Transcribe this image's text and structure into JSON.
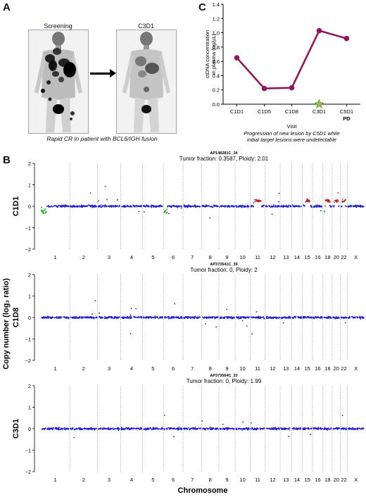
{
  "panels": {
    "a": {
      "letter": "A",
      "left_label": "Screening",
      "right_label": "C3D1",
      "caption": "Rapid CR in patient with BCL6/IGH fusion"
    },
    "b": {
      "letter": "B"
    },
    "c": {
      "letter": "C"
    }
  },
  "chart_data": [
    {
      "type": "line",
      "panel": "C",
      "categories": [
        "C1D1",
        "C1D5",
        "C1D8",
        "C3D1",
        "C5D1"
      ],
      "values": [
        0.65,
        0.22,
        0.23,
        1.03,
        0.92
      ],
      "ylabel_line1": "ctDNA concentration",
      "ylabel_line2": "in plasma (ng/µL)",
      "xlabel": "Visit",
      "ylim": [
        0,
        1.4
      ],
      "yticks": [
        "0.0",
        "0.2",
        "0.4",
        "0.6",
        "0.8",
        "1.0",
        "1.2",
        "1.4"
      ],
      "pd_label": "PD",
      "pd_category": "C5D1",
      "star_category": "C3D1",
      "caption_line1": "Progression of new lesion by C5D1 while",
      "caption_line2": "initial target lesions were undetectable",
      "line_color": "#8b1a5c",
      "star_color": "#8cc63f",
      "grid": false
    },
    {
      "type": "scatter",
      "panel": "B",
      "ylabel": "Copy number (log₂ ratio)",
      "xlabel": "Chromosome",
      "chromosomes": [
        "1",
        "2",
        "3",
        "4",
        "5",
        "6",
        "7",
        "8",
        "9",
        "10",
        "11",
        "12",
        "13",
        "14",
        "15",
        "16",
        "18",
        "20",
        "22",
        "X"
      ],
      "ylim": [
        -2,
        2
      ],
      "yticks": [
        "2",
        "1",
        "0",
        "−1",
        "−2"
      ],
      "point_color": "#2222cc",
      "gain_color": "#b22222",
      "loss_color": "#22aa22",
      "samples": [
        {
          "id": "AP148281C_34",
          "subtitle": "Tumor fraction: 0.3587, Ploidy: 2.01",
          "visit": "C1D1",
          "gains": [
            "11",
            "15",
            "18",
            "20",
            "22"
          ],
          "losses": [
            "1",
            "6",
            "18"
          ]
        },
        {
          "id": "AP373541C_39",
          "subtitle": "Tumor fraction: 0, Ploidy: 2",
          "visit": "C1D8",
          "gains": [],
          "losses": []
        },
        {
          "id": "AP373564C_33",
          "subtitle": "Tumor fraction: 0, Ploidy: 1.99",
          "visit": "C3D1",
          "gains": [],
          "losses": []
        }
      ]
    }
  ]
}
